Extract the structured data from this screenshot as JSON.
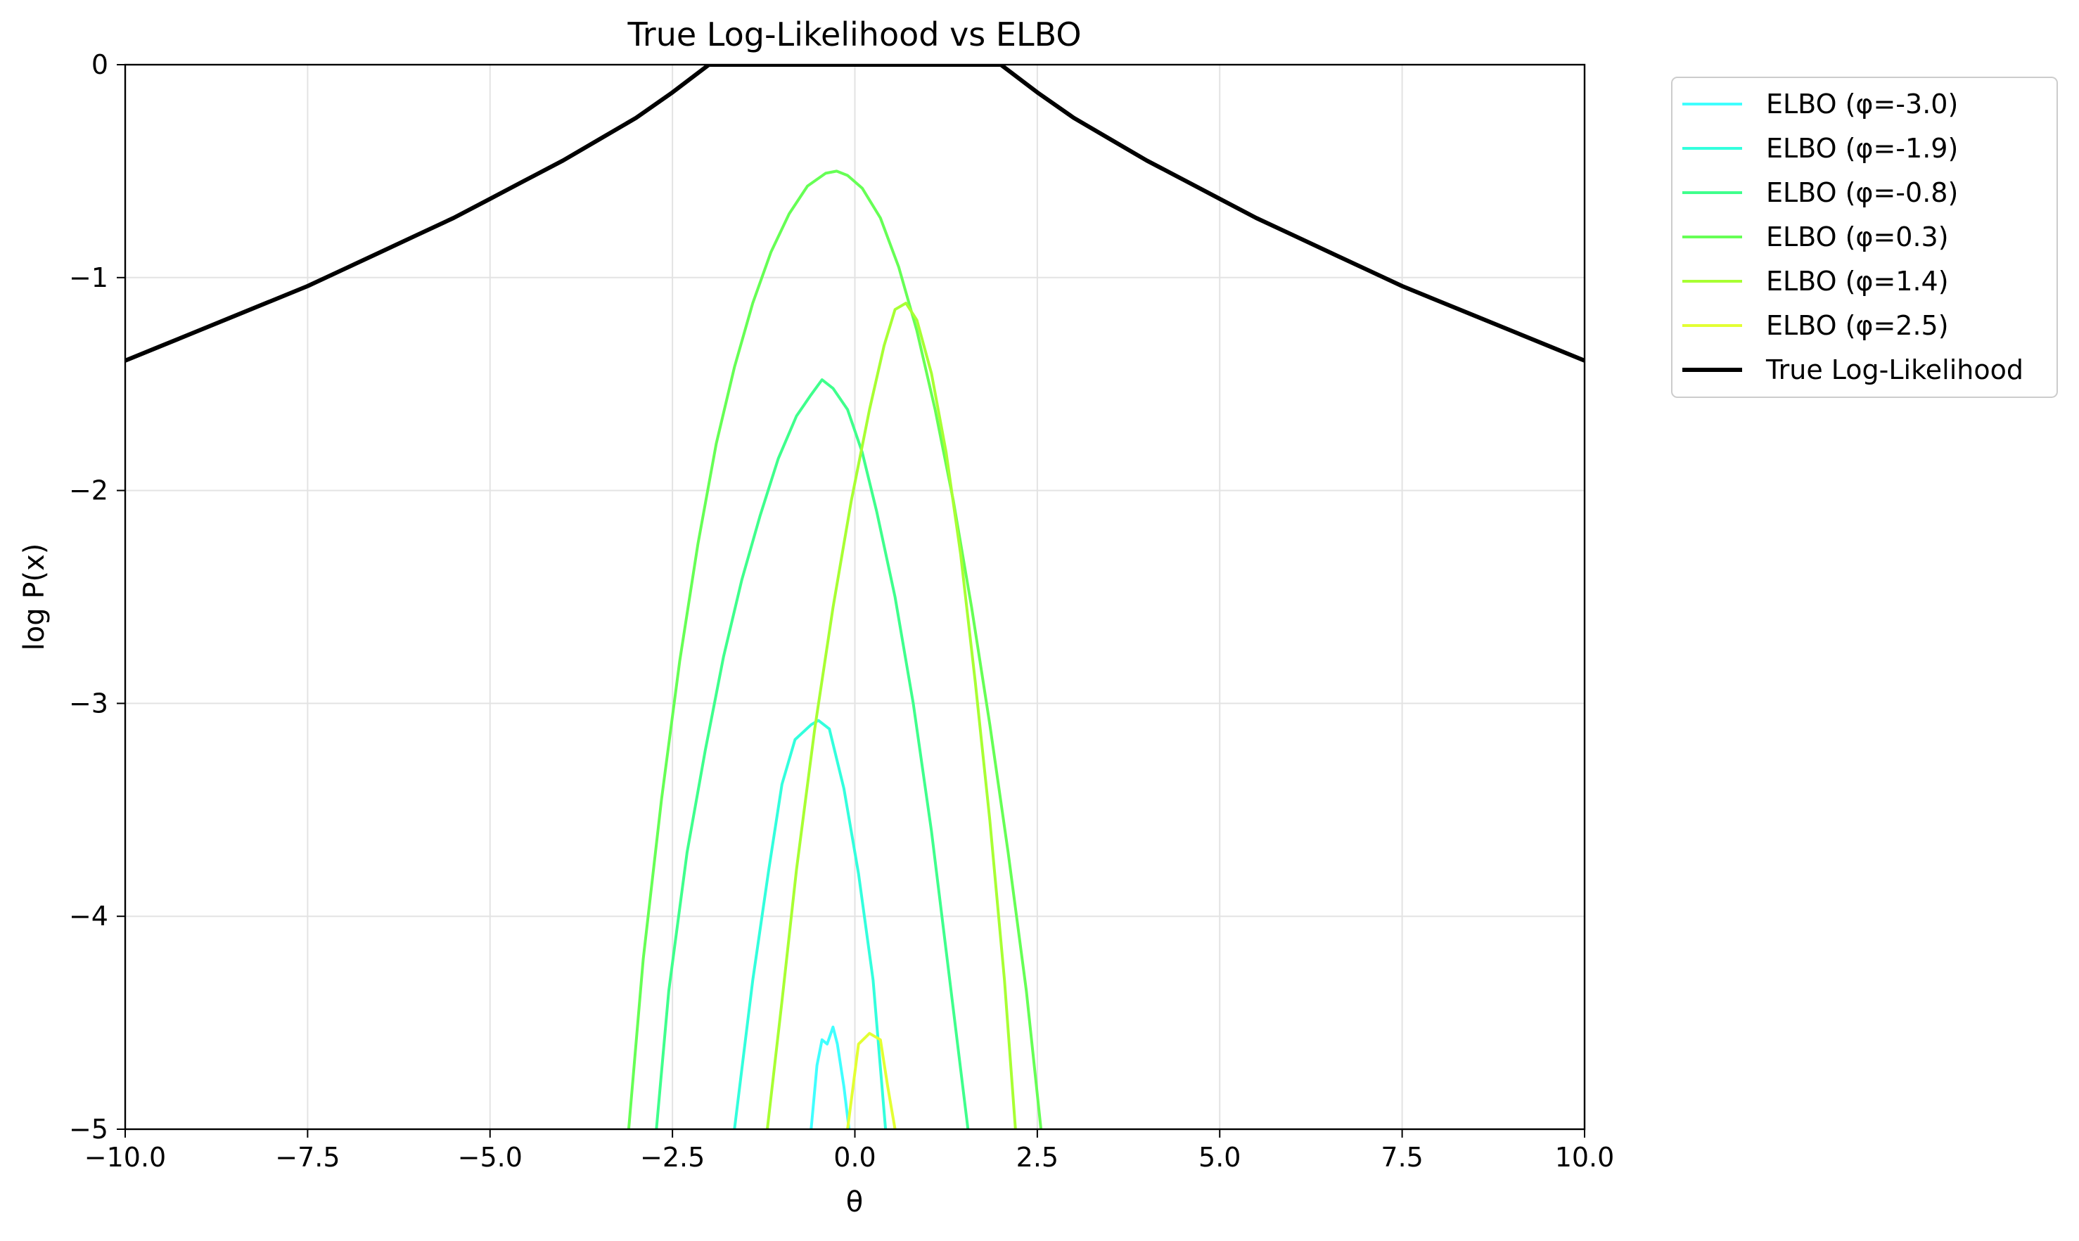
{
  "chart_data": {
    "type": "line",
    "title": "True Log-Likelihood vs ELBO",
    "xlabel": "θ",
    "ylabel": "log P(x)",
    "xlim": [
      -10,
      10
    ],
    "ylim": [
      -5,
      0
    ],
    "grid": true,
    "legend_position": "outside-top-right",
    "x_ticks": [
      -10.0,
      -7.5,
      -5.0,
      -2.5,
      0.0,
      2.5,
      5.0,
      7.5,
      10.0
    ],
    "x_tick_labels": [
      "−10.0",
      "−7.5",
      "−5.0",
      "−2.5",
      "0.0",
      "2.5",
      "5.0",
      "7.5",
      "10.0"
    ],
    "y_ticks": [
      0,
      -1,
      -2,
      -3,
      -4,
      -5
    ],
    "y_tick_labels": [
      "0",
      "−1",
      "−2",
      "−3",
      "−4",
      "−5"
    ],
    "series": [
      {
        "name": "ELBO (φ=-3.0)",
        "color": "#40ffff",
        "points": [
          [
            -0.6,
            -5.0
          ],
          [
            -0.52,
            -4.7
          ],
          [
            -0.45,
            -4.58
          ],
          [
            -0.38,
            -4.6
          ],
          [
            -0.3,
            -4.52
          ],
          [
            -0.24,
            -4.6
          ],
          [
            -0.15,
            -4.8
          ],
          [
            -0.08,
            -5.0
          ]
        ]
      },
      {
        "name": "ELBO (φ=-1.9)",
        "color": "#33ffdd",
        "points": [
          [
            -1.65,
            -5.0
          ],
          [
            -1.4,
            -4.3
          ],
          [
            -1.18,
            -3.78
          ],
          [
            -1.0,
            -3.38
          ],
          [
            -0.82,
            -3.17
          ],
          [
            -0.6,
            -3.1
          ],
          [
            -0.5,
            -3.08
          ],
          [
            -0.35,
            -3.12
          ],
          [
            -0.15,
            -3.4
          ],
          [
            0.05,
            -3.8
          ],
          [
            0.25,
            -4.3
          ],
          [
            0.42,
            -5.0
          ]
        ]
      },
      {
        "name": "ELBO (φ=-0.8)",
        "color": "#3fff8c",
        "points": [
          [
            -2.72,
            -5.0
          ],
          [
            -2.55,
            -4.35
          ],
          [
            -2.3,
            -3.7
          ],
          [
            -2.05,
            -3.22
          ],
          [
            -1.8,
            -2.78
          ],
          [
            -1.55,
            -2.42
          ],
          [
            -1.3,
            -2.12
          ],
          [
            -1.05,
            -1.85
          ],
          [
            -0.8,
            -1.65
          ],
          [
            -0.6,
            -1.55
          ],
          [
            -0.45,
            -1.48
          ],
          [
            -0.3,
            -1.52
          ],
          [
            -0.1,
            -1.62
          ],
          [
            0.1,
            -1.82
          ],
          [
            0.3,
            -2.1
          ],
          [
            0.55,
            -2.5
          ],
          [
            0.8,
            -3.0
          ],
          [
            1.05,
            -3.6
          ],
          [
            1.3,
            -4.3
          ],
          [
            1.55,
            -5.0
          ]
        ]
      },
      {
        "name": "ELBO (φ=0.3)",
        "color": "#66ff55",
        "points": [
          [
            -3.1,
            -5.0
          ],
          [
            -2.9,
            -4.2
          ],
          [
            -2.65,
            -3.45
          ],
          [
            -2.4,
            -2.8
          ],
          [
            -2.15,
            -2.25
          ],
          [
            -1.9,
            -1.78
          ],
          [
            -1.65,
            -1.42
          ],
          [
            -1.4,
            -1.12
          ],
          [
            -1.15,
            -0.88
          ],
          [
            -0.9,
            -0.7
          ],
          [
            -0.65,
            -0.57
          ],
          [
            -0.4,
            -0.51
          ],
          [
            -0.25,
            -0.5
          ],
          [
            -0.1,
            -0.52
          ],
          [
            0.1,
            -0.58
          ],
          [
            0.35,
            -0.72
          ],
          [
            0.6,
            -0.95
          ],
          [
            0.85,
            -1.25
          ],
          [
            1.1,
            -1.62
          ],
          [
            1.35,
            -2.05
          ],
          [
            1.6,
            -2.55
          ],
          [
            1.85,
            -3.1
          ],
          [
            2.1,
            -3.7
          ],
          [
            2.35,
            -4.35
          ],
          [
            2.55,
            -5.0
          ]
        ]
      },
      {
        "name": "ELBO (φ=1.4)",
        "color": "#a8ff33",
        "points": [
          [
            -1.2,
            -5.0
          ],
          [
            -1.0,
            -4.4
          ],
          [
            -0.8,
            -3.78
          ],
          [
            -0.55,
            -3.12
          ],
          [
            -0.3,
            -2.55
          ],
          [
            -0.05,
            -2.05
          ],
          [
            0.2,
            -1.62
          ],
          [
            0.4,
            -1.32
          ],
          [
            0.55,
            -1.15
          ],
          [
            0.7,
            -1.12
          ],
          [
            0.85,
            -1.2
          ],
          [
            1.05,
            -1.45
          ],
          [
            1.25,
            -1.82
          ],
          [
            1.45,
            -2.3
          ],
          [
            1.65,
            -2.9
          ],
          [
            1.85,
            -3.55
          ],
          [
            2.05,
            -4.3
          ],
          [
            2.2,
            -5.0
          ]
        ]
      },
      {
        "name": "ELBO (φ=2.5)",
        "color": "#e3ff33",
        "points": [
          [
            -0.1,
            -5.0
          ],
          [
            0.05,
            -4.6
          ],
          [
            0.2,
            -4.55
          ],
          [
            0.35,
            -4.58
          ],
          [
            0.45,
            -4.8
          ],
          [
            0.55,
            -5.0
          ]
        ]
      },
      {
        "name": "True Log-Likelihood",
        "color": "#000000",
        "points": [
          [
            -10.0,
            -1.39
          ],
          [
            -9.5,
            -1.32
          ],
          [
            -9.0,
            -1.25
          ],
          [
            -8.5,
            -1.18
          ],
          [
            -8.0,
            -1.11
          ],
          [
            -7.5,
            -1.04
          ],
          [
            -7.0,
            -0.96
          ],
          [
            -6.5,
            -0.88
          ],
          [
            -6.0,
            -0.8
          ],
          [
            -5.5,
            -0.72
          ],
          [
            -5.0,
            -0.63
          ],
          [
            -4.5,
            -0.54
          ],
          [
            -4.0,
            -0.45
          ],
          [
            -3.5,
            -0.35
          ],
          [
            -3.0,
            -0.25
          ],
          [
            -2.5,
            -0.13
          ],
          [
            -2.0,
            0.0
          ],
          [
            2.0,
            0.0
          ],
          [
            2.5,
            -0.13
          ],
          [
            3.0,
            -0.25
          ],
          [
            3.5,
            -0.35
          ],
          [
            4.0,
            -0.45
          ],
          [
            4.5,
            -0.54
          ],
          [
            5.0,
            -0.63
          ],
          [
            5.5,
            -0.72
          ],
          [
            6.0,
            -0.8
          ],
          [
            6.5,
            -0.88
          ],
          [
            7.0,
            -0.96
          ],
          [
            7.5,
            -1.04
          ],
          [
            8.0,
            -1.11
          ],
          [
            8.5,
            -1.18
          ],
          [
            9.0,
            -1.25
          ],
          [
            9.5,
            -1.32
          ],
          [
            10.0,
            -1.39
          ]
        ]
      }
    ]
  }
}
